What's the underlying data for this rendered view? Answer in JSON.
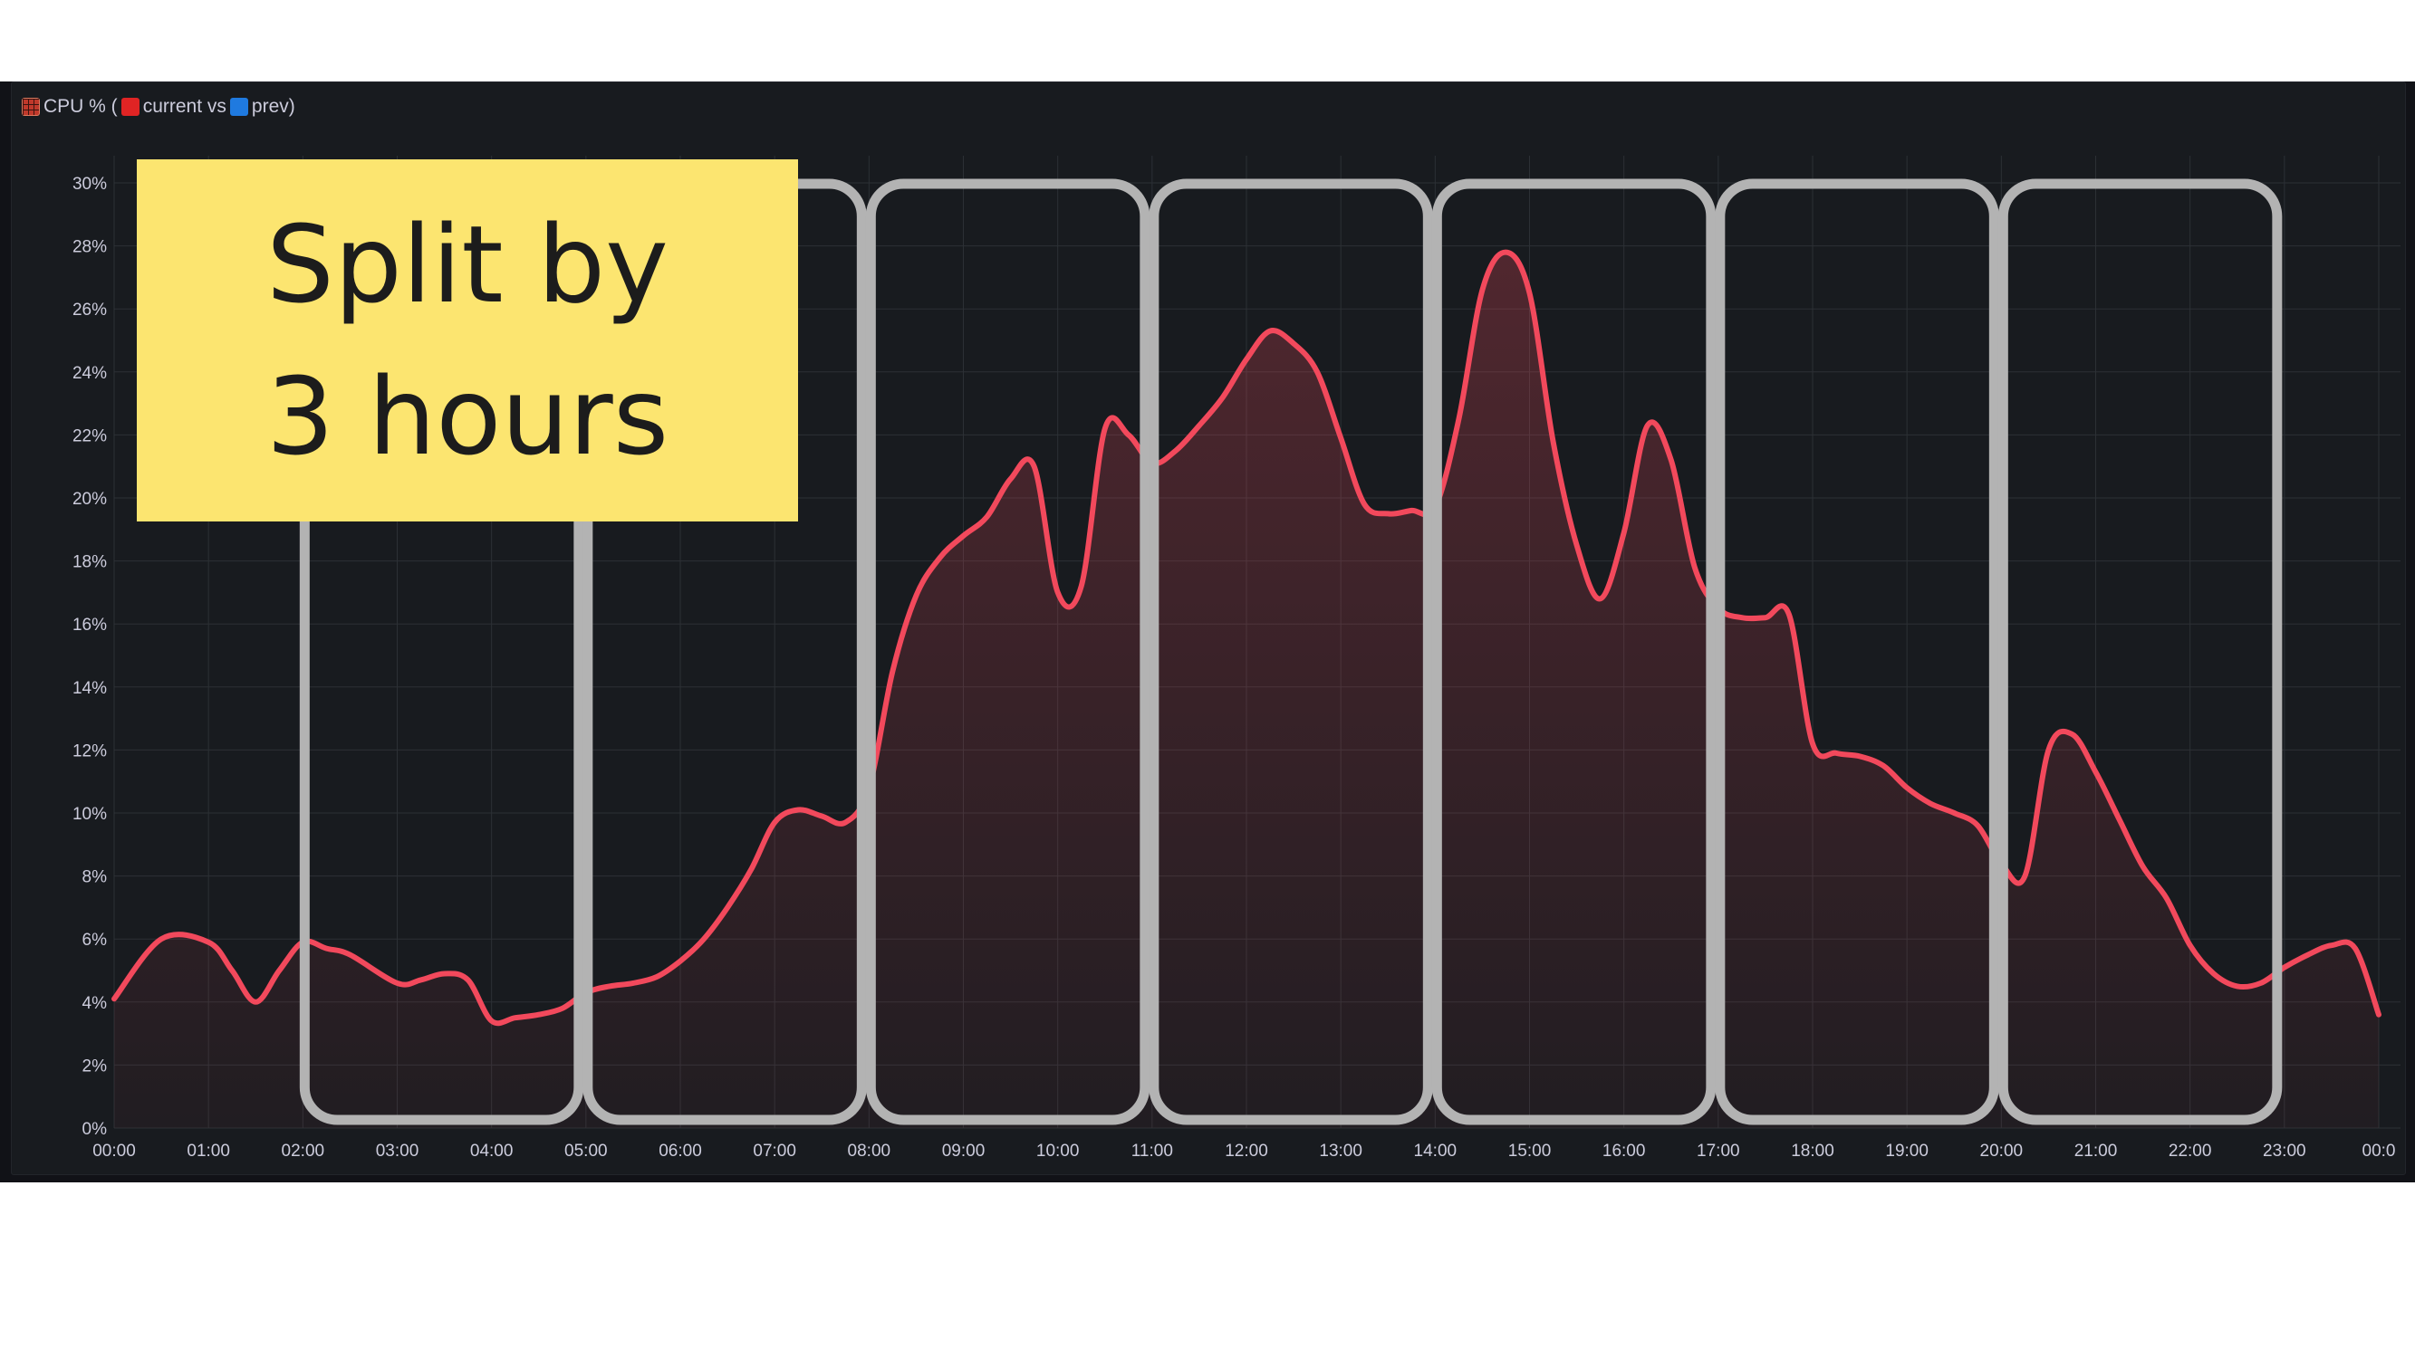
{
  "panel": {
    "title_prefix": "CPU % (",
    "current_label": "current vs",
    "prev_label": "prev)",
    "title_icon": "grid-calendar-icon",
    "current_icon": "red-square-icon",
    "prev_icon": "blue-square-icon"
  },
  "annotation": {
    "line1": "Split by",
    "line2": "3 hours",
    "background": "#fce570"
  },
  "colors": {
    "series": "#f2495c",
    "bracket": "#b3b3b3",
    "grid": "#2c3035",
    "panel_bg": "#181b1f"
  },
  "chart_data": {
    "type": "area",
    "ylim": [
      0,
      30
    ],
    "y_ticks": [
      "0%",
      "2%",
      "4%",
      "6%",
      "8%",
      "10%",
      "12%",
      "14%",
      "16%",
      "18%",
      "20%",
      "22%",
      "24%",
      "26%",
      "28%",
      "30%"
    ],
    "x_ticks": [
      "00:00",
      "01:00",
      "02:00",
      "03:00",
      "04:00",
      "05:00",
      "06:00",
      "07:00",
      "08:00",
      "09:00",
      "10:00",
      "11:00",
      "12:00",
      "13:00",
      "14:00",
      "15:00",
      "16:00",
      "17:00",
      "18:00",
      "19:00",
      "20:00",
      "21:00",
      "22:00",
      "23:00",
      "00:0"
    ],
    "grid": true,
    "series": [
      {
        "hours": [
          0,
          0.5,
          1,
          1.25,
          1.5,
          1.75,
          2,
          2.25,
          2.5,
          3,
          3.25,
          3.5,
          3.75,
          4,
          4.25,
          4.5,
          4.75,
          5,
          5.25,
          5.5,
          5.75,
          6,
          6.25,
          6.5,
          6.75,
          7,
          7.25,
          7.5,
          7.75,
          8,
          8.25,
          8.5,
          8.75,
          9,
          9.25,
          9.5,
          9.75,
          10,
          10.25,
          10.5,
          10.75,
          11,
          11.25,
          11.5,
          11.75,
          12,
          12.25,
          12.5,
          12.75,
          13,
          13.25,
          13.5,
          13.75,
          14,
          14.25,
          14.5,
          14.75,
          15,
          15.25,
          15.5,
          15.75,
          16,
          16.25,
          16.5,
          16.75,
          17,
          17.25,
          17.5,
          17.75,
          18,
          18.25,
          18.5,
          18.75,
          19,
          19.25,
          19.5,
          19.75,
          20,
          20.25,
          20.5,
          20.75,
          21,
          21.25,
          21.5,
          21.75,
          22,
          22.25,
          22.5,
          22.75,
          23,
          23.25,
          23.5,
          23.75,
          24
        ],
        "values": [
          4.1,
          6.0,
          5.9,
          5.0,
          4.0,
          5.0,
          5.9,
          5.7,
          5.5,
          4.6,
          4.7,
          4.9,
          4.7,
          3.4,
          3.5,
          3.6,
          3.8,
          4.3,
          4.5,
          4.6,
          4.8,
          5.3,
          6.0,
          7.0,
          8.2,
          9.7,
          10.1,
          9.9,
          9.7,
          10.8,
          14.5,
          16.9,
          18.1,
          18.8,
          19.4,
          20.6,
          21.0,
          17.0,
          17.2,
          22.2,
          22.0,
          21.1,
          21.5,
          22.3,
          23.2,
          24.4,
          25.3,
          24.9,
          24.0,
          21.9,
          19.8,
          19.5,
          19.6,
          19.7,
          22.5,
          26.6,
          27.8,
          26.5,
          21.8,
          18.5,
          16.8,
          18.9,
          22.3,
          21.2,
          17.8,
          16.5,
          16.2,
          16.2,
          16.3,
          12.2,
          11.9,
          11.8,
          11.5,
          10.8,
          10.3,
          10.0,
          9.6,
          8.4,
          8.0,
          12.0,
          12.5,
          11.3,
          9.8,
          8.3,
          7.3,
          5.8,
          4.9,
          4.5,
          4.6,
          5.1,
          5.5,
          5.8,
          5.7,
          3.6
        ]
      }
    ]
  }
}
